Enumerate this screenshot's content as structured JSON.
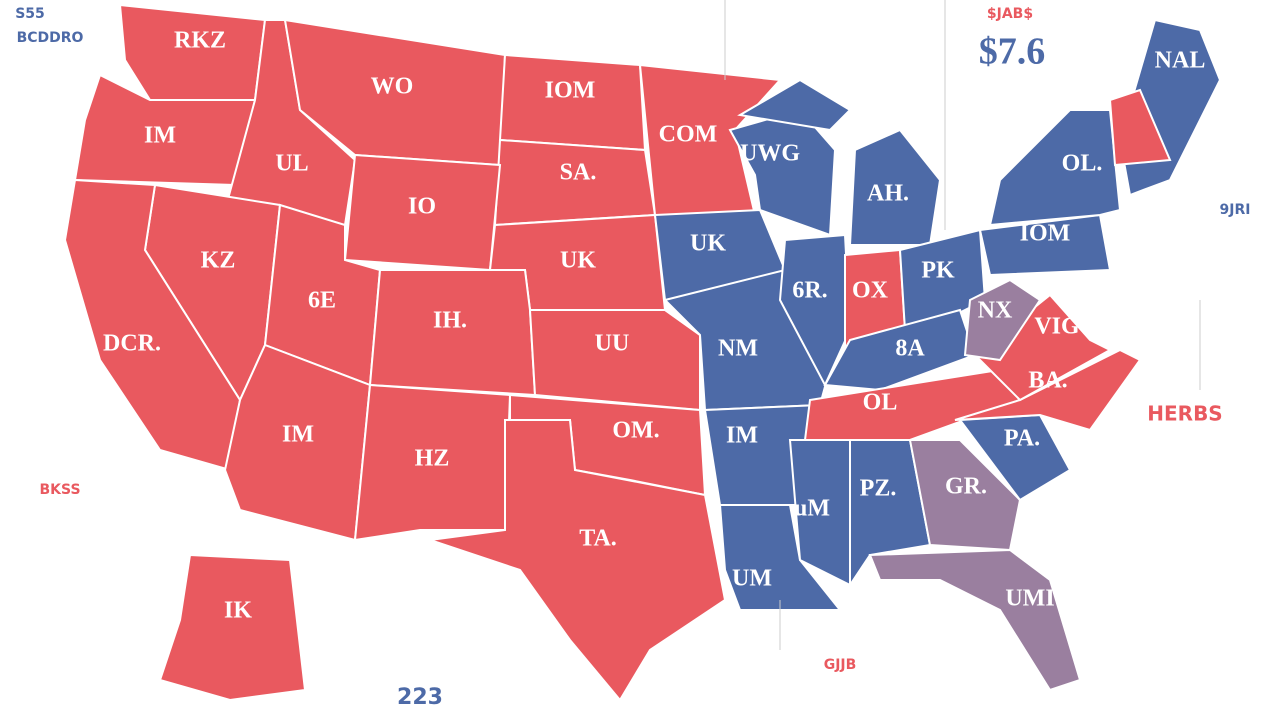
{
  "map": {
    "headline": "$7.6",
    "notes": [
      "$JAB$",
      "S55",
      "BCDDRO",
      "BKSS",
      "9JRI",
      "HERBS",
      "223",
      "GJJB"
    ],
    "palette": {
      "red": "#e9595f",
      "blue": "#4d6aa7",
      "purple": "#9a7f9f"
    },
    "states": [
      {
        "label": "RKZ",
        "fill": "red"
      },
      {
        "label": "IM",
        "fill": "red"
      },
      {
        "label": "UL",
        "fill": "red"
      },
      {
        "label": "WO",
        "fill": "red"
      },
      {
        "label": "IOM",
        "fill": "red"
      },
      {
        "label": "SA.",
        "fill": "red"
      },
      {
        "label": "IO",
        "fill": "red"
      },
      {
        "label": "UK",
        "fill": "red"
      },
      {
        "label": "KZ",
        "fill": "red"
      },
      {
        "label": "DCR.",
        "fill": "red"
      },
      {
        "label": "6E",
        "fill": "red"
      },
      {
        "label": "IH.",
        "fill": "red"
      },
      {
        "label": "UU",
        "fill": "red"
      },
      {
        "label": "IM",
        "fill": "red"
      },
      {
        "label": "HZ",
        "fill": "red"
      },
      {
        "label": "OM.",
        "fill": "red"
      },
      {
        "label": "TA.",
        "fill": "red"
      },
      {
        "label": "COM",
        "fill": "red"
      },
      {
        "label": "IK",
        "fill": "red"
      },
      {
        "label": "UK",
        "fill": "blue"
      },
      {
        "label": "NM",
        "fill": "blue"
      },
      {
        "label": "UWG",
        "fill": "blue"
      },
      {
        "label": "AH.",
        "fill": "blue"
      },
      {
        "label": "6R.",
        "fill": "blue"
      },
      {
        "label": "IM",
        "fill": "blue"
      },
      {
        "label": "UM",
        "fill": "blue"
      },
      {
        "label": "uM",
        "fill": "blue"
      },
      {
        "label": "PZ.",
        "fill": "blue"
      },
      {
        "label": "OX",
        "fill": "red"
      },
      {
        "label": "PK",
        "fill": "blue"
      },
      {
        "label": "8A",
        "fill": "blue"
      },
      {
        "label": "OL",
        "fill": "red"
      },
      {
        "label": "GR.",
        "fill": "purple"
      },
      {
        "label": "PA.",
        "fill": "blue"
      },
      {
        "label": "BA.",
        "fill": "red"
      },
      {
        "label": "VIG",
        "fill": "red"
      },
      {
        "label": "NX",
        "fill": "purple"
      },
      {
        "label": "IOM",
        "fill": "blue"
      },
      {
        "label": "OL.",
        "fill": "blue"
      },
      {
        "label": "NAL",
        "fill": "blue"
      },
      {
        "label": "",
        "fill": "red"
      },
      {
        "label": "UMI",
        "fill": "purple"
      },
      {
        "label": "",
        "fill": "blue"
      }
    ]
  }
}
